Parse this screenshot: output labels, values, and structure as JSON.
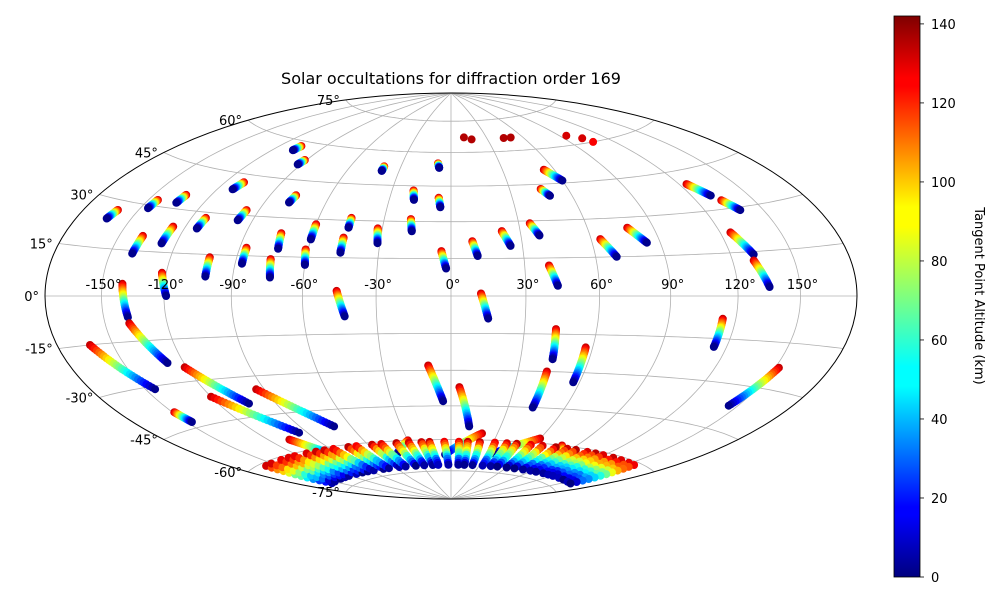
{
  "chart_data": {
    "type": "scatter",
    "projection": "hammer",
    "title": "Solar occultations for diffraction order 169",
    "xlabel": "",
    "ylabel": "",
    "grid": true,
    "lon_ticks": [
      "-150°",
      "-120°",
      "-90°",
      "-60°",
      "-30°",
      "0°",
      "30°",
      "60°",
      "90°",
      "120°",
      "150°"
    ],
    "lat_ticks": [
      "75°",
      "60°",
      "45°",
      "30°",
      "15°",
      "0°",
      "-15°",
      "-30°",
      "-45°",
      "-60°",
      "-75°"
    ],
    "colorbar": {
      "label": "Tangent Point Altitude (km)",
      "colormap": "jet",
      "range": [
        0,
        142
      ],
      "ticks": [
        "0",
        "20",
        "40",
        "60",
        "80",
        "100",
        "120",
        "140"
      ]
    },
    "tracks": [
      {
        "lon_start": -161,
        "lat_start": 27,
        "lon_end": -163,
        "lat_end": 24
      },
      {
        "lon_start": -145,
        "lat_start": 32,
        "lon_end": -146,
        "lat_end": 29
      },
      {
        "lon_start": -133,
        "lat_start": 35,
        "lon_end": -134,
        "lat_end": 32
      },
      {
        "lon_start": -138,
        "lat_start": 20,
        "lon_end": -139,
        "lat_end": 14
      },
      {
        "lon_start": -126,
        "lat_start": 24,
        "lon_end": -127,
        "lat_end": 18
      },
      {
        "lon_start": -113,
        "lat_start": 28,
        "lon_end": -114,
        "lat_end": 24
      },
      {
        "lon_start": -110,
        "lat_start": 42,
        "lon_end": -112,
        "lat_end": 39
      },
      {
        "lon_start": -106,
        "lat_start": 58,
        "lon_end": -107,
        "lat_end": 56
      },
      {
        "lon_start": -96,
        "lat_start": 32,
        "lon_end": -97,
        "lat_end": 28
      },
      {
        "lon_start": -91,
        "lat_start": 53,
        "lon_end": -92,
        "lat_end": 51
      },
      {
        "lon_start": -102,
        "lat_start": 14,
        "lon_end": -102,
        "lat_end": 7
      },
      {
        "lon_start": -87,
        "lat_start": 18,
        "lon_end": -87,
        "lat_end": 12
      },
      {
        "lon_start": -77,
        "lat_start": 39,
        "lon_end": -78,
        "lat_end": 36
      },
      {
        "lon_start": -74,
        "lat_start": 24,
        "lon_end": -73,
        "lat_end": 18
      },
      {
        "lon_start": -75,
        "lat_start": 14,
        "lon_end": -74,
        "lat_end": 7
      },
      {
        "lon_start": -60,
        "lat_start": 28,
        "lon_end": -60,
        "lat_end": 22
      },
      {
        "lon_start": -61,
        "lat_start": 18,
        "lon_end": -60,
        "lat_end": 12
      },
      {
        "lon_start": -45,
        "lat_start": 31,
        "lon_end": -45,
        "lat_end": 27
      },
      {
        "lon_start": -46,
        "lat_start": 23,
        "lon_end": -46,
        "lat_end": 17
      },
      {
        "lon_start": -40,
        "lat_start": 53,
        "lon_end": -40,
        "lat_end": 51
      },
      {
        "lon_start": -32,
        "lat_start": 27,
        "lon_end": -31,
        "lat_end": 21
      },
      {
        "lon_start": -19,
        "lat_start": 43,
        "lon_end": -18,
        "lat_end": 39
      },
      {
        "lon_start": -18,
        "lat_start": 31,
        "lon_end": -17,
        "lat_end": 26
      },
      {
        "lon_start": -8,
        "lat_start": 55,
        "lon_end": -7,
        "lat_end": 53
      },
      {
        "lon_start": -6,
        "lat_start": 40,
        "lon_end": -5,
        "lat_end": 36
      },
      {
        "lon_start": -4,
        "lat_start": 18,
        "lon_end": -2,
        "lat_end": 11
      },
      {
        "lon_start": 9,
        "lat_start": 22,
        "lon_end": 11,
        "lat_end": 16
      },
      {
        "lon_start": 12,
        "lat_start": 1,
        "lon_end": 15,
        "lat_end": -9
      },
      {
        "lon_start": 22,
        "lat_start": 26,
        "lon_end": 25,
        "lat_end": 20
      },
      {
        "lon_start": 35,
        "lat_start": 29,
        "lon_end": 38,
        "lat_end": 24
      },
      {
        "lon_start": 40,
        "lat_start": 12,
        "lon_end": 43,
        "lat_end": 4
      },
      {
        "lon_start": 46,
        "lat_start": 43,
        "lon_end": 49,
        "lat_end": 40
      },
      {
        "lon_start": 54,
        "lat_start": 51,
        "lon_end": 60,
        "lat_end": 46
      },
      {
        "lon_start": 43,
        "lat_start": -13,
        "lon_end": 44,
        "lat_end": -25
      },
      {
        "lon_start": 43,
        "lat_start": -30,
        "lon_end": 43,
        "lat_end": -45
      },
      {
        "lon_start": 57,
        "lat_start": -20,
        "lon_end": 57,
        "lat_end": -34
      },
      {
        "lon_start": 64,
        "lat_start": 22,
        "lon_end": 69,
        "lat_end": 15
      },
      {
        "lon_start": 78,
        "lat_start": 26,
        "lon_end": 84,
        "lat_end": 20
      },
      {
        "lon_start": 114,
        "lat_start": -8,
        "lon_end": 114,
        "lat_end": -18
      },
      {
        "lon_start": 125,
        "lat_start": 22,
        "lon_end": 131,
        "lat_end": 14
      },
      {
        "lon_start": 130,
        "lat_start": 12,
        "lon_end": 135,
        "lat_end": 3
      },
      {
        "lon_start": 124,
        "lat_start": 40,
        "lon_end": 130,
        "lat_end": 35
      },
      {
        "lon_start": 133,
        "lat_start": 33,
        "lon_end": 138,
        "lat_end": 29
      },
      {
        "lon_start": -140,
        "lat_start": 4,
        "lon_end": -138,
        "lat_end": -7
      },
      {
        "lon_start": -122,
        "lat_start": 8,
        "lon_end": -119,
        "lat_end": 0
      },
      {
        "lon_start": -138,
        "lat_start": -9,
        "lon_end": -128,
        "lat_end": -23
      },
      {
        "lon_start": -162,
        "lat_start": -15,
        "lon_end": -145,
        "lat_end": -31
      },
      {
        "lon_start": -121,
        "lat_start": -25,
        "lon_end": -104,
        "lat_end": -40
      },
      {
        "lon_start": -120,
        "lat_start": -36,
        "lon_end": -95,
        "lat_end": -53
      },
      {
        "lon_start": -94,
        "lat_start": -35,
        "lon_end": -70,
        "lat_end": -52
      },
      {
        "lon_start": -149,
        "lat_start": -39,
        "lon_end": -147,
        "lat_end": -43
      },
      {
        "lon_start": -46,
        "lat_start": 2,
        "lon_end": -43,
        "lat_end": -8
      },
      {
        "lon_start": -10,
        "lat_start": -28,
        "lon_end": -4,
        "lat_end": -43
      },
      {
        "lon_start": 4,
        "lat_start": -37,
        "lon_end": 11,
        "lat_end": -54
      },
      {
        "lon_start": 152,
        "lat_start": -23,
        "lon_end": 145,
        "lat_end": -37
      },
      {
        "lon_start": -107,
        "lat_start": -55,
        "lon_end": -93,
        "lat_end": -64
      },
      {
        "lon_start": 20,
        "lat_start": -57,
        "lon_end": -5,
        "lat_end": -67
      },
      {
        "lon_start": 60,
        "lat_start": -58,
        "lon_end": 35,
        "lat_end": -66
      },
      {
        "lon_start": -30,
        "lat_start": -60,
        "lon_end": -45,
        "lat_end": -66
      },
      {
        "lon_start": 80,
        "lat_start": -60,
        "lon_end": 100,
        "lat_end": -67
      }
    ],
    "points": [
      {
        "lon": 11,
        "lat": 67,
        "alt": 135
      },
      {
        "lon": 17,
        "lat": 66,
        "alt": 135
      },
      {
        "lon": 44,
        "lat": 66,
        "alt": 135
      },
      {
        "lon": 50,
        "lat": 66,
        "alt": 135
      },
      {
        "lon": 95,
        "lat": 64,
        "alt": 130
      },
      {
        "lon": 103,
        "lat": 62,
        "alt": 130
      },
      {
        "lon": 106,
        "lat": 60,
        "alt": 125
      }
    ],
    "south_band": {
      "lon_min": -160,
      "lon_max": 162,
      "lat_top": -61,
      "lat_bottom": -72
    }
  }
}
